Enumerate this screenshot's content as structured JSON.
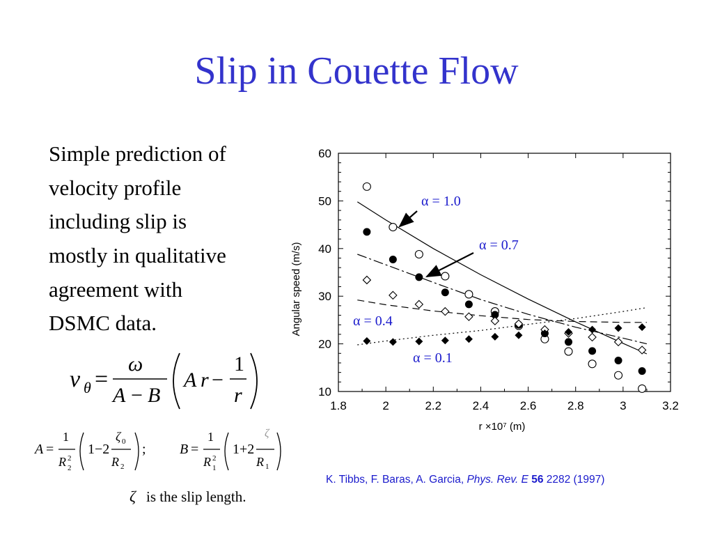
{
  "slide": {
    "title": "Slip in Couette Flow",
    "body_lines": [
      "Simple prediction of",
      "velocity profile",
      "including slip is",
      "mostly in qualitative",
      "agreement with",
      "DSMC data."
    ],
    "slip_note": {
      "symbol": "ζ",
      "text": "is the slip length."
    },
    "citation": {
      "authors": "K. Tibbs, F. Baras, A. Garcia,",
      "journal": "Phys. Rev. E",
      "volume": "56",
      "rest": "2282 (1997)"
    }
  },
  "chart_data": {
    "type": "scatter",
    "xlabel": "r ×10⁷ (m)",
    "ylabel": "Angular speed (m/s)",
    "xlim": [
      1.8,
      3.2
    ],
    "ylim": [
      10,
      60
    ],
    "xticks": [
      "1.8",
      "2",
      "2.2",
      "2.4",
      "2.6",
      "2.8",
      "3",
      "3.2"
    ],
    "yticks": [
      "10",
      "20",
      "30",
      "40",
      "50",
      "60"
    ],
    "x": [
      1.92,
      2.03,
      2.14,
      2.25,
      2.35,
      2.46,
      2.56,
      2.67,
      2.77,
      2.87,
      2.98,
      3.08
    ],
    "series": [
      {
        "name": "α = 1.0",
        "marker": "open-circle",
        "values": [
          53,
          44.5,
          38.8,
          34.2,
          30.4,
          26.8,
          23.8,
          21,
          18.4,
          15.8,
          13.4,
          10.6
        ],
        "curve": [
          [
            1.88,
            49.8
          ],
          [
            2.0,
            46
          ],
          [
            2.2,
            40
          ],
          [
            2.4,
            34.5
          ],
          [
            2.6,
            29.4
          ],
          [
            2.8,
            24.6
          ],
          [
            3.0,
            20.1
          ],
          [
            3.1,
            17.9
          ]
        ]
      },
      {
        "name": "α = 0.7",
        "marker": "filled-circle",
        "values": [
          43.5,
          37.7,
          34,
          30.8,
          28.3,
          26.1,
          24,
          22.2,
          20.4,
          18.5,
          16.5,
          14.3
        ],
        "curve": [
          [
            1.88,
            38.8
          ],
          [
            2.0,
            36.6
          ],
          [
            2.2,
            32.9
          ],
          [
            2.4,
            29.3
          ],
          [
            2.6,
            26.2
          ],
          [
            2.8,
            23.5
          ],
          [
            3.0,
            21.2
          ],
          [
            3.1,
            20
          ]
        ]
      },
      {
        "name": "α = 0.4",
        "marker": "open-diamond",
        "values": [
          33.4,
          30.2,
          28.3,
          26.8,
          25.7,
          24.8,
          24.2,
          23,
          22.2,
          21.4,
          20.4,
          18.7
        ],
        "curve": [
          [
            1.88,
            29.2
          ],
          [
            2.0,
            28.2
          ],
          [
            2.2,
            26.9
          ],
          [
            2.4,
            25.9
          ],
          [
            2.6,
            25.1
          ],
          [
            2.8,
            24.7
          ],
          [
            3.0,
            24.5
          ],
          [
            3.1,
            24.5
          ]
        ]
      },
      {
        "name": "α = 0.1",
        "marker": "filled-diamond",
        "values": [
          20.6,
          20.4,
          20.5,
          20.7,
          21,
          21.5,
          21.8,
          22.2,
          22.5,
          23,
          23.3,
          23.5
        ],
        "curve": [
          [
            1.88,
            19.8
          ],
          [
            2.0,
            20.6
          ],
          [
            2.2,
            21.8
          ],
          [
            2.4,
            22.8
          ],
          [
            2.6,
            24.1
          ],
          [
            2.8,
            25.3
          ],
          [
            3.0,
            26.8
          ],
          [
            3.1,
            27.6
          ]
        ]
      }
    ],
    "annotations": [
      {
        "text": "α = 1.0"
      },
      {
        "text": "α = 0.7"
      },
      {
        "text": "α = 0.4"
      },
      {
        "text": "α = 0.1"
      }
    ],
    "grid": false,
    "legend": "none"
  }
}
